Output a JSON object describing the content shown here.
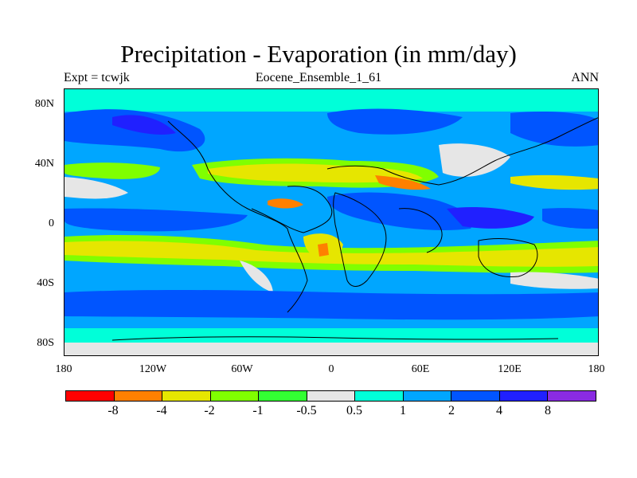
{
  "title": "Precipitation - Evaporation (in mm/day)",
  "subtitle_left": "Expt = tcwjk",
  "subtitle_center": "Eocene_Ensemble_1_61",
  "subtitle_right": "ANN",
  "map": {
    "lon_labels": [
      "180",
      "120W",
      "60W",
      "0",
      "60E",
      "120E",
      "180"
    ],
    "lat_labels": [
      "80N",
      "40N",
      "0",
      "40S",
      "80S"
    ],
    "lon_range": [
      -180,
      180
    ],
    "lat_range": [
      -90,
      90
    ],
    "field_colors": {
      "red": "#ff0000",
      "orange": "#ff8000",
      "yellow": "#e6e600",
      "lightgreen": "#80ff00",
      "green": "#33ff33",
      "gray": "#e6e6e6",
      "cyan": "#00ffd9",
      "lightblue": "#00a6ff",
      "blue": "#0055ff",
      "darkblue": "#2020ff",
      "purple": "#8a2be2"
    }
  },
  "colorbar": {
    "colors": [
      "#ff0000",
      "#ff8000",
      "#e6e600",
      "#80ff00",
      "#33ff33",
      "#e6e6e6",
      "#00ffd9",
      "#00a6ff",
      "#0055ff",
      "#2020ff",
      "#8a2be2"
    ],
    "labels": [
      "-8",
      "-4",
      "-2",
      "-1",
      "-0.5",
      "0.5",
      "1",
      "2",
      "4",
      "8"
    ]
  }
}
